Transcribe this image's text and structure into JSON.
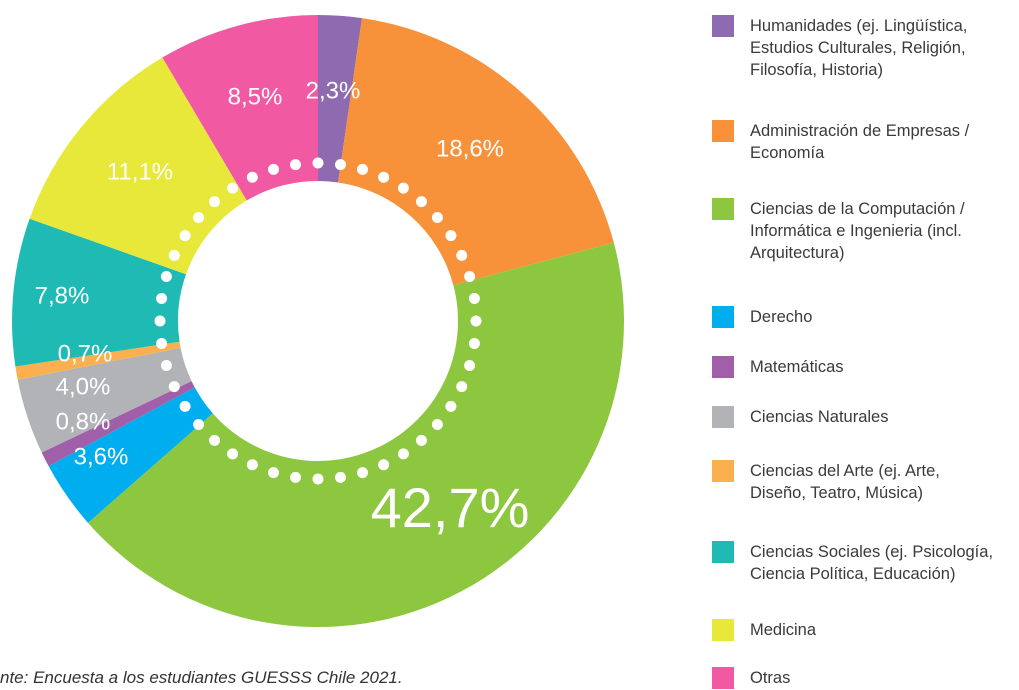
{
  "chart_data": {
    "type": "donut",
    "source": "nte: Encuesta a los estudiantes GUESSS Chile 2021.",
    "series": [
      {
        "name": "Humanidades (ej. Lingüística,\nEstudios Culturales, Religión,\nFilosofía, Historia)",
        "color": "#8e6bb0",
        "values": [
          2.3
        ],
        "value_labels": [
          "2,3%"
        ]
      },
      {
        "name": "Administración de Empresas /\nEconomía",
        "color": "#f7923a",
        "values": [
          18.6
        ],
        "value_labels": [
          "18,6%"
        ]
      },
      {
        "name": "Ciencias de la Computación /\nInformática e Ingenieria (incl.\nArquitectura)",
        "color": "#8dc63f",
        "values": [
          42.7
        ],
        "value_labels": [
          "42,7%"
        ]
      },
      {
        "name": "Derecho",
        "color": "#00aeef",
        "values": [
          3.6
        ],
        "value_labels": [
          "3,6%"
        ]
      },
      {
        "name": "Matemáticas",
        "color": "#a25fa9",
        "values": [
          0.8
        ],
        "value_labels": [
          "0,8%"
        ]
      },
      {
        "name": "Ciencias Naturales",
        "color": "#b1b3b6",
        "values": [
          4.0
        ],
        "value_labels": [
          "4,0%"
        ]
      },
      {
        "name": "Ciencias del Arte (ej. Arte,\nDiseño, Teatro, Música)",
        "color": "#fbb050",
        "values": [
          0.7
        ],
        "value_labels": [
          "0,7%"
        ]
      },
      {
        "name": "Ciencias Sociales (ej. Psicología,\nCiencia Política, Educación)",
        "color": "#1fbab4",
        "values": [
          7.8
        ],
        "value_labels": [
          "7,8%"
        ]
      },
      {
        "name": "Medicina",
        "color": "#e8e83a",
        "values": [
          11.1
        ],
        "value_labels": [
          "11,1%"
        ]
      },
      {
        "name": "Otras",
        "color": "#f15aa3",
        "values": [
          8.5
        ],
        "value_labels": [
          "8,5%"
        ]
      }
    ]
  }
}
